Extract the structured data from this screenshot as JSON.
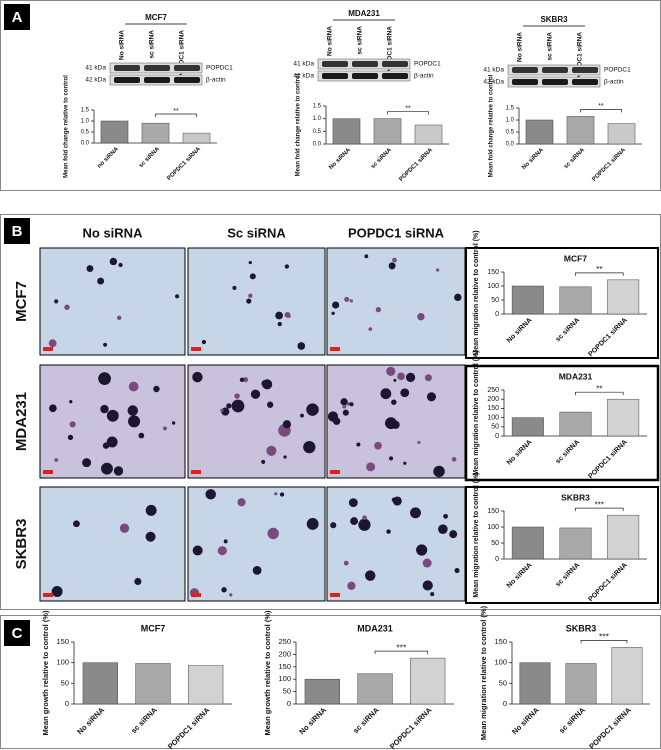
{
  "panels": [
    "A",
    "B",
    "C"
  ],
  "blots": [
    {
      "title": "MCF7",
      "lanes": [
        "No siRNA",
        "sc siRNA",
        "POPDC1 siRNA"
      ],
      "bands": [
        {
          "size": "41 kDa",
          "label": "POPDC1"
        },
        {
          "size": "42 kDa",
          "label": "β-actin"
        }
      ]
    },
    {
      "title": "MDA231",
      "lanes": [
        "No siRNA",
        "sc siRNA",
        "POPDC1 siRNA"
      ],
      "bands": [
        {
          "size": "41 kDa",
          "label": "POPDC1"
        },
        {
          "size": "42 kDa",
          "label": "β-actin"
        }
      ]
    },
    {
      "title": "SKBR3",
      "lanes": [
        "No siRNA",
        "sc siRNA",
        "POPDC1 siRNA"
      ],
      "bands": [
        {
          "size": "41 kDa",
          "label": "POPDC1"
        },
        {
          "size": "42 kDa",
          "label": "β-actin"
        }
      ]
    }
  ],
  "microscopy": {
    "columns": [
      "No siRNA",
      "Sc siRNA",
      "POPDC1 siRNA"
    ],
    "rows": [
      "MCF7",
      "MDA231",
      "SKBR3"
    ]
  },
  "chart_data": [
    {
      "type": "bar",
      "y_label": "Mean fold change relative to control",
      "categories": [
        "no siRNA",
        "sc siRNA",
        "POPDC1 siRNA"
      ],
      "values": [
        1.0,
        0.9,
        0.45
      ],
      "colors": [
        "#8a8a8a",
        "#a9a9a9",
        "#c9c9c9"
      ],
      "ylim": [
        0,
        1.5
      ],
      "yticks": [
        {
          "value": 0,
          "label": "0.0"
        },
        {
          "value": 0.5,
          "label": "0.5"
        },
        {
          "value": 1,
          "label": "1.0"
        },
        {
          "value": 1.5,
          "label": "1.5"
        }
      ],
      "significance": "**"
    },
    {
      "type": "bar",
      "y_label": "Mean fold change relative to control",
      "categories": [
        "No siRNA",
        "sc siRNA",
        "POPDC1 siRNA"
      ],
      "values": [
        1.0,
        1.0,
        0.75
      ],
      "colors": [
        "#8a8a8a",
        "#a9a9a9",
        "#c9c9c9"
      ],
      "ylim": [
        0,
        1.5
      ],
      "yticks": [
        {
          "value": 0,
          "label": "0.0"
        },
        {
          "value": 0.5,
          "label": "0.5"
        },
        {
          "value": 1,
          "label": "1.0"
        },
        {
          "value": 1.5,
          "label": "1.5"
        }
      ],
      "significance": "**"
    },
    {
      "type": "bar",
      "y_label": "Mean fold change relative to control",
      "categories": [
        "No siRNA",
        "sc siRNA",
        "POPDC1 siRNA"
      ],
      "values": [
        1.0,
        1.15,
        0.85
      ],
      "colors": [
        "#8a8a8a",
        "#a9a9a9",
        "#c9c9c9"
      ],
      "ylim": [
        0,
        1.5
      ],
      "yticks": [
        {
          "value": 0,
          "label": "0.0"
        },
        {
          "value": 0.5,
          "label": "0.5"
        },
        {
          "value": 1,
          "label": "1.0"
        },
        {
          "value": 1.5,
          "label": "1.5"
        }
      ],
      "significance": "**"
    },
    {
      "type": "bar",
      "title": "MCF7",
      "y_label": "Mean migration relative to control (%)",
      "categories": [
        "No siRNA",
        "sc siRNA",
        "POPDC1 siRNA"
      ],
      "values": [
        100,
        97,
        122
      ],
      "colors": [
        "#8a8a8a",
        "#a9a9a9",
        "#d2d2d2"
      ],
      "ylim": [
        0,
        150
      ],
      "yticks": [
        0,
        50,
        100,
        150
      ],
      "significance": "**"
    },
    {
      "type": "bar",
      "title": "MDA231",
      "y_label": "Mean migration relative to control (%)",
      "categories": [
        "No siRNA",
        "sc siRNA",
        "POPDC1 siRNA"
      ],
      "values": [
        100,
        130,
        200
      ],
      "colors": [
        "#8a8a8a",
        "#a9a9a9",
        "#d2d2d2"
      ],
      "ylim": [
        0,
        250
      ],
      "yticks": [
        0,
        50,
        100,
        150,
        200,
        250
      ],
      "significance": "**"
    },
    {
      "type": "bar",
      "title": "SKBR3",
      "y_label": "Mean migration relative to control (%)",
      "categories": [
        "No siRNA",
        "sc siRNA",
        "POPDC1 siRNA"
      ],
      "values": [
        100,
        97,
        137
      ],
      "colors": [
        "#8a8a8a",
        "#a9a9a9",
        "#d2d2d2"
      ],
      "ylim": [
        0,
        150
      ],
      "yticks": [
        0,
        50,
        100,
        150
      ],
      "significance": "***"
    },
    {
      "type": "bar",
      "title": "MCF7",
      "y_label": "Mean growth relative to control (%)",
      "categories": [
        "No siRNA",
        "sc siRNA",
        "POPDC1 siRNA"
      ],
      "values": [
        100,
        98,
        93
      ],
      "colors": [
        "#8a8a8a",
        "#a9a9a9",
        "#d2d2d2"
      ],
      "ylim": [
        0,
        150
      ],
      "yticks": [
        0,
        50,
        100,
        150
      ]
    },
    {
      "type": "bar",
      "title": "MDA231",
      "y_label": "Mean growth relative to control (%)",
      "categories": [
        "No siRNA",
        "sc siRNA",
        "POPDC1 siRNA"
      ],
      "values": [
        100,
        122,
        185
      ],
      "colors": [
        "#8a8a8a",
        "#a9a9a9",
        "#d2d2d2"
      ],
      "ylim": [
        0,
        250
      ],
      "yticks": [
        0,
        50,
        100,
        150,
        200,
        250
      ],
      "significance": "***"
    },
    {
      "type": "bar",
      "title": "SKBR3",
      "y_label": "Mean migration relative to control (%)",
      "categories": [
        "No siRNA",
        "sc siRNA",
        "POPDC1 siRNA"
      ],
      "values": [
        100,
        98,
        137
      ],
      "colors": [
        "#8a8a8a",
        "#a9a9a9",
        "#d2d2d2"
      ],
      "ylim": [
        0,
        150
      ],
      "yticks": [
        0,
        50,
        100,
        150
      ],
      "significance": "***"
    }
  ]
}
